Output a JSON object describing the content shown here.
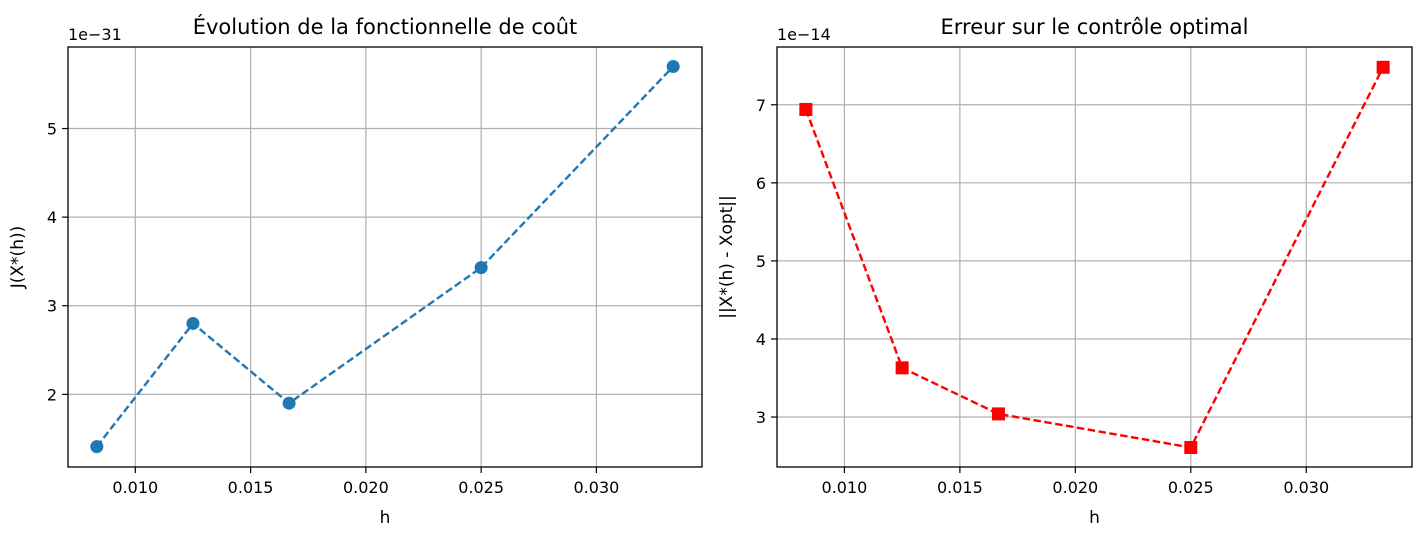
{
  "chart_data": [
    {
      "type": "line",
      "title": "Évolution de la fonctionnelle de coût",
      "xlabel": "h",
      "ylabel": "J(X*(h))",
      "y_offset_label": "1e−31",
      "x_ticks": [
        "0.010",
        "0.015",
        "0.020",
        "0.025",
        "0.030"
      ],
      "x_tick_values": [
        0.01,
        0.015,
        0.02,
        0.025,
        0.03
      ],
      "y_ticks": [
        "2",
        "3",
        "4",
        "5"
      ],
      "y_tick_values": [
        2,
        3,
        4,
        5
      ],
      "xlim": [
        0.00708,
        0.03458
      ],
      "ylim": [
        1.18,
        5.92
      ],
      "grid": true,
      "series": [
        {
          "x": [
            0.00833,
            0.0125,
            0.01667,
            0.025,
            0.03333
          ],
          "y": [
            1.41,
            2.8,
            1.9,
            3.43,
            5.7
          ],
          "color": "#1f77b4",
          "marker": "circle",
          "linestyle": "dashed"
        }
      ]
    },
    {
      "type": "line",
      "title": "Erreur sur le contrôle optimal",
      "xlabel": "h",
      "ylabel": "||X*(h) - Xopt||",
      "y_offset_label": "1e−14",
      "x_ticks": [
        "0.010",
        "0.015",
        "0.020",
        "0.025",
        "0.030"
      ],
      "x_tick_values": [
        0.01,
        0.015,
        0.02,
        0.025,
        0.03
      ],
      "y_ticks": [
        "3",
        "4",
        "5",
        "6",
        "7"
      ],
      "y_tick_values": [
        3,
        4,
        5,
        6,
        7
      ],
      "xlim": [
        0.00708,
        0.03458
      ],
      "ylim": [
        2.36,
        7.74
      ],
      "grid": true,
      "series": [
        {
          "x": [
            0.00833,
            0.0125,
            0.01667,
            0.025,
            0.03333
          ],
          "y": [
            6.94,
            3.63,
            3.04,
            2.61,
            7.48
          ],
          "color": "#ff0000",
          "marker": "square",
          "linestyle": "dashed"
        }
      ]
    }
  ]
}
